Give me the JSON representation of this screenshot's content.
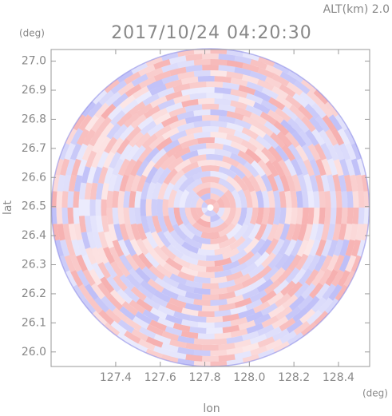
{
  "chart_data": {
    "type": "radar-ppi",
    "title": "2017/10/24 04:20:30",
    "subtitle": "ALT(km) 2.0",
    "x_label": "lon",
    "y_label": "lat",
    "x_unit": "(deg)",
    "y_unit": "(deg)",
    "xlim": [
      127.11,
      128.54
    ],
    "ylim": [
      25.95,
      27.04
    ],
    "xticks": [
      127.4,
      127.6,
      127.8,
      {
        "value": 128.0,
        "label": "128.0"
      },
      128.2,
      128.4
    ],
    "yticks": [
      {
        "value": 26.0,
        "label": "26.0"
      },
      26.1,
      26.2,
      26.3,
      26.4,
      26.5,
      26.6,
      26.7,
      26.8,
      26.9,
      {
        "value": 27.0,
        "label": "27.0"
      }
    ]
  }
}
